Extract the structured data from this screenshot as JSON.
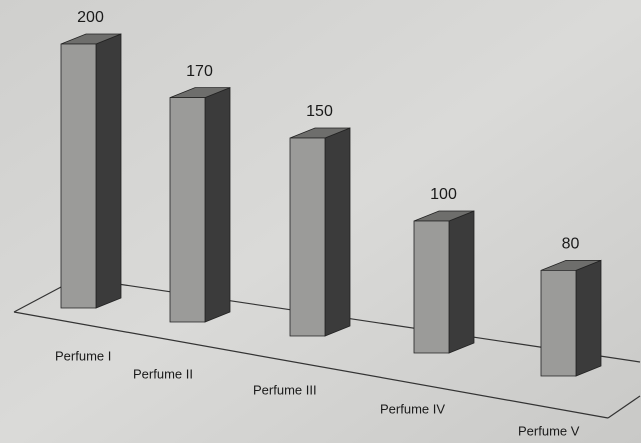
{
  "chart_data": {
    "type": "bar",
    "categories": [
      "Perfume I",
      "Perfume II",
      "Perfume III",
      "Perfume IV",
      "Perfume V"
    ],
    "values": [
      200,
      170,
      150,
      100,
      80
    ],
    "color": "#9b9b99"
  }
}
